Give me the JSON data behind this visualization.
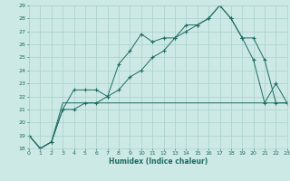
{
  "xlabel": "Humidex (Indice chaleur)",
  "bg_color": "#cce9e5",
  "grid_color": "#add4cf",
  "line_color": "#1e6b62",
  "xlim": [
    0,
    23
  ],
  "ylim": [
    18,
    29
  ],
  "xticks": [
    0,
    1,
    2,
    3,
    4,
    5,
    6,
    7,
    8,
    9,
    10,
    11,
    12,
    13,
    14,
    15,
    16,
    17,
    18,
    19,
    20,
    21,
    22,
    23
  ],
  "yticks": [
    18,
    19,
    20,
    21,
    22,
    23,
    24,
    25,
    26,
    27,
    28,
    29
  ],
  "line1_x": [
    0,
    1,
    2,
    3,
    4,
    5,
    6,
    7,
    8,
    9,
    10,
    11,
    12,
    13,
    14,
    15,
    16,
    17,
    18,
    19,
    20,
    21,
    22,
    23
  ],
  "line1_y": [
    19.0,
    18.0,
    18.5,
    21.0,
    22.5,
    22.5,
    22.5,
    22.0,
    24.5,
    25.5,
    26.8,
    26.2,
    26.5,
    26.5,
    27.5,
    27.5,
    28.0,
    29.0,
    28.0,
    26.5,
    24.8,
    21.5,
    23.0,
    21.5
  ],
  "line2_x": [
    0,
    1,
    2,
    3,
    4,
    5,
    6,
    7,
    8,
    9,
    10,
    11,
    12,
    13,
    14,
    15,
    16,
    17,
    18,
    19,
    20,
    21,
    22,
    23
  ],
  "line2_y": [
    19.0,
    18.0,
    18.5,
    21.0,
    21.0,
    21.5,
    21.5,
    22.0,
    22.5,
    23.5,
    24.0,
    25.0,
    25.5,
    26.5,
    27.0,
    27.5,
    28.0,
    29.0,
    28.0,
    26.5,
    26.5,
    24.8,
    21.5,
    21.5
  ],
  "line3_x": [
    0,
    1,
    2,
    3,
    4,
    5,
    6,
    7,
    8,
    9,
    10,
    11,
    12,
    13,
    14,
    15,
    16,
    17,
    18,
    19,
    20,
    21,
    22,
    23
  ],
  "line3_y": [
    19.0,
    18.0,
    18.5,
    21.5,
    21.5,
    21.5,
    21.5,
    21.5,
    21.5,
    21.5,
    21.5,
    21.5,
    21.5,
    21.5,
    21.5,
    21.5,
    21.5,
    21.5,
    21.5,
    21.5,
    21.5,
    21.5,
    21.5,
    21.5
  ]
}
